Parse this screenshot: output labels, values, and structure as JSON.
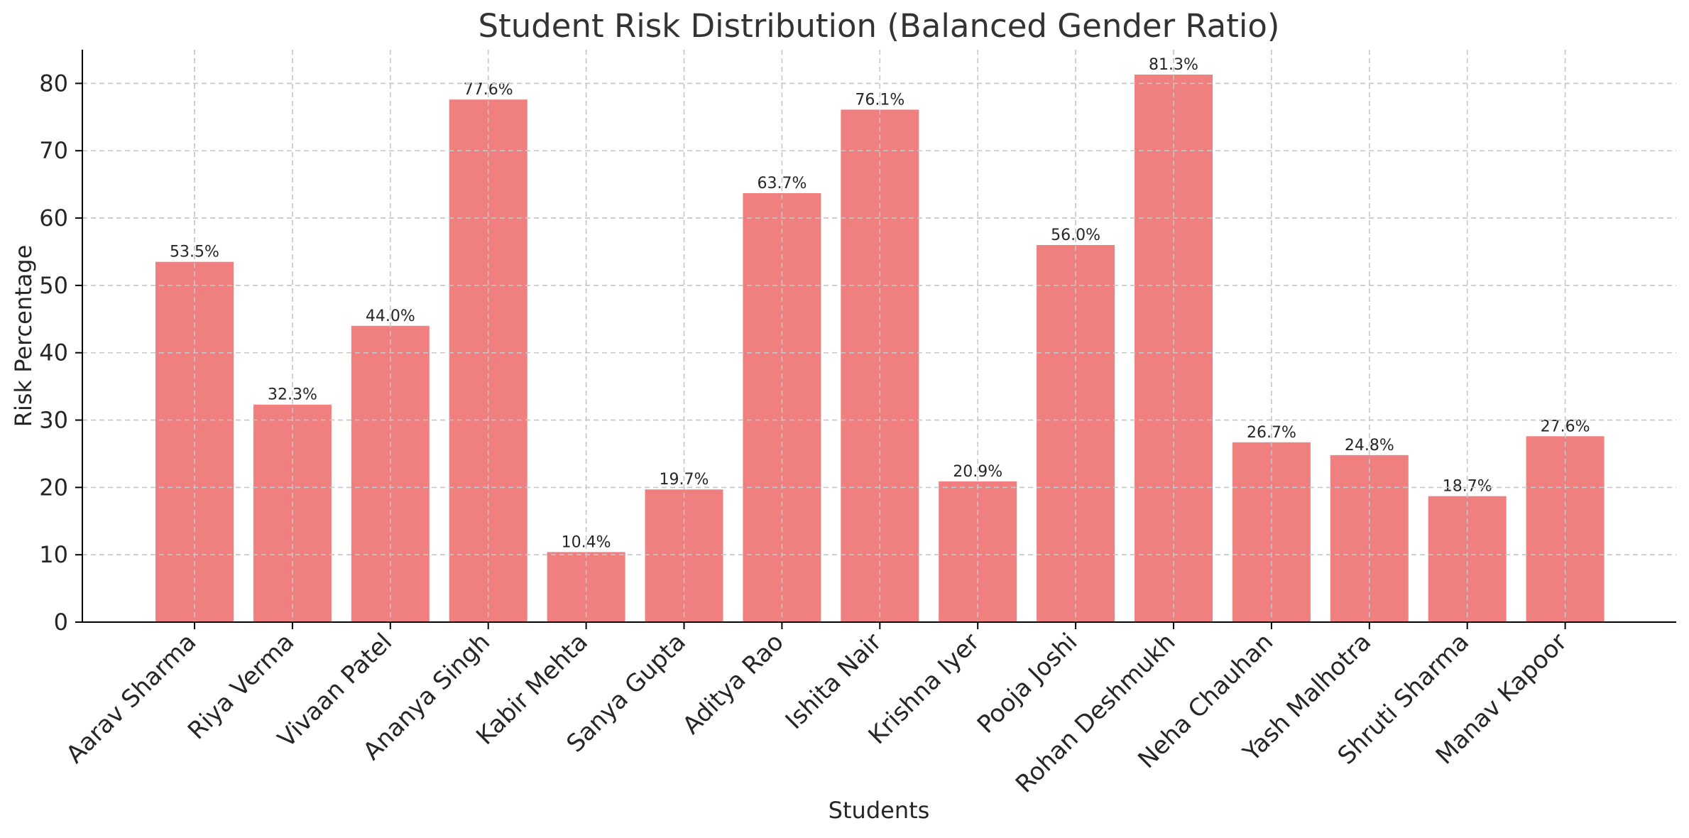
{
  "chart_data": {
    "type": "bar",
    "title": "Student Risk Distribution (Balanced Gender Ratio)",
    "xlabel": "Students",
    "ylabel": "Risk Percentage",
    "ylim": [
      0,
      85
    ],
    "yticks": [
      0,
      10,
      20,
      30,
      40,
      50,
      60,
      70,
      80
    ],
    "grid": true,
    "bar_color": "#f08080",
    "categories": [
      "Aarav Sharma",
      "Riya Verma",
      "Vivaan Patel",
      "Ananya Singh",
      "Kabir Mehta",
      "Sanya Gupta",
      "Aditya Rao",
      "Ishita Nair",
      "Krishna Iyer",
      "Pooja Joshi",
      "Rohan Deshmukh",
      "Neha Chauhan",
      "Yash Malhotra",
      "Shruti Sharma",
      "Manav Kapoor"
    ],
    "values": [
      53.5,
      32.3,
      44.0,
      77.6,
      10.4,
      19.7,
      63.7,
      76.1,
      20.9,
      56.0,
      81.3,
      26.7,
      24.8,
      18.7,
      27.6
    ],
    "data_labels": [
      "53.5%",
      "32.3%",
      "44.0%",
      "77.6%",
      "10.4%",
      "19.7%",
      "63.7%",
      "76.1%",
      "20.9%",
      "56.0%",
      "81.3%",
      "26.7%",
      "24.8%",
      "18.7%",
      "27.6%"
    ]
  }
}
